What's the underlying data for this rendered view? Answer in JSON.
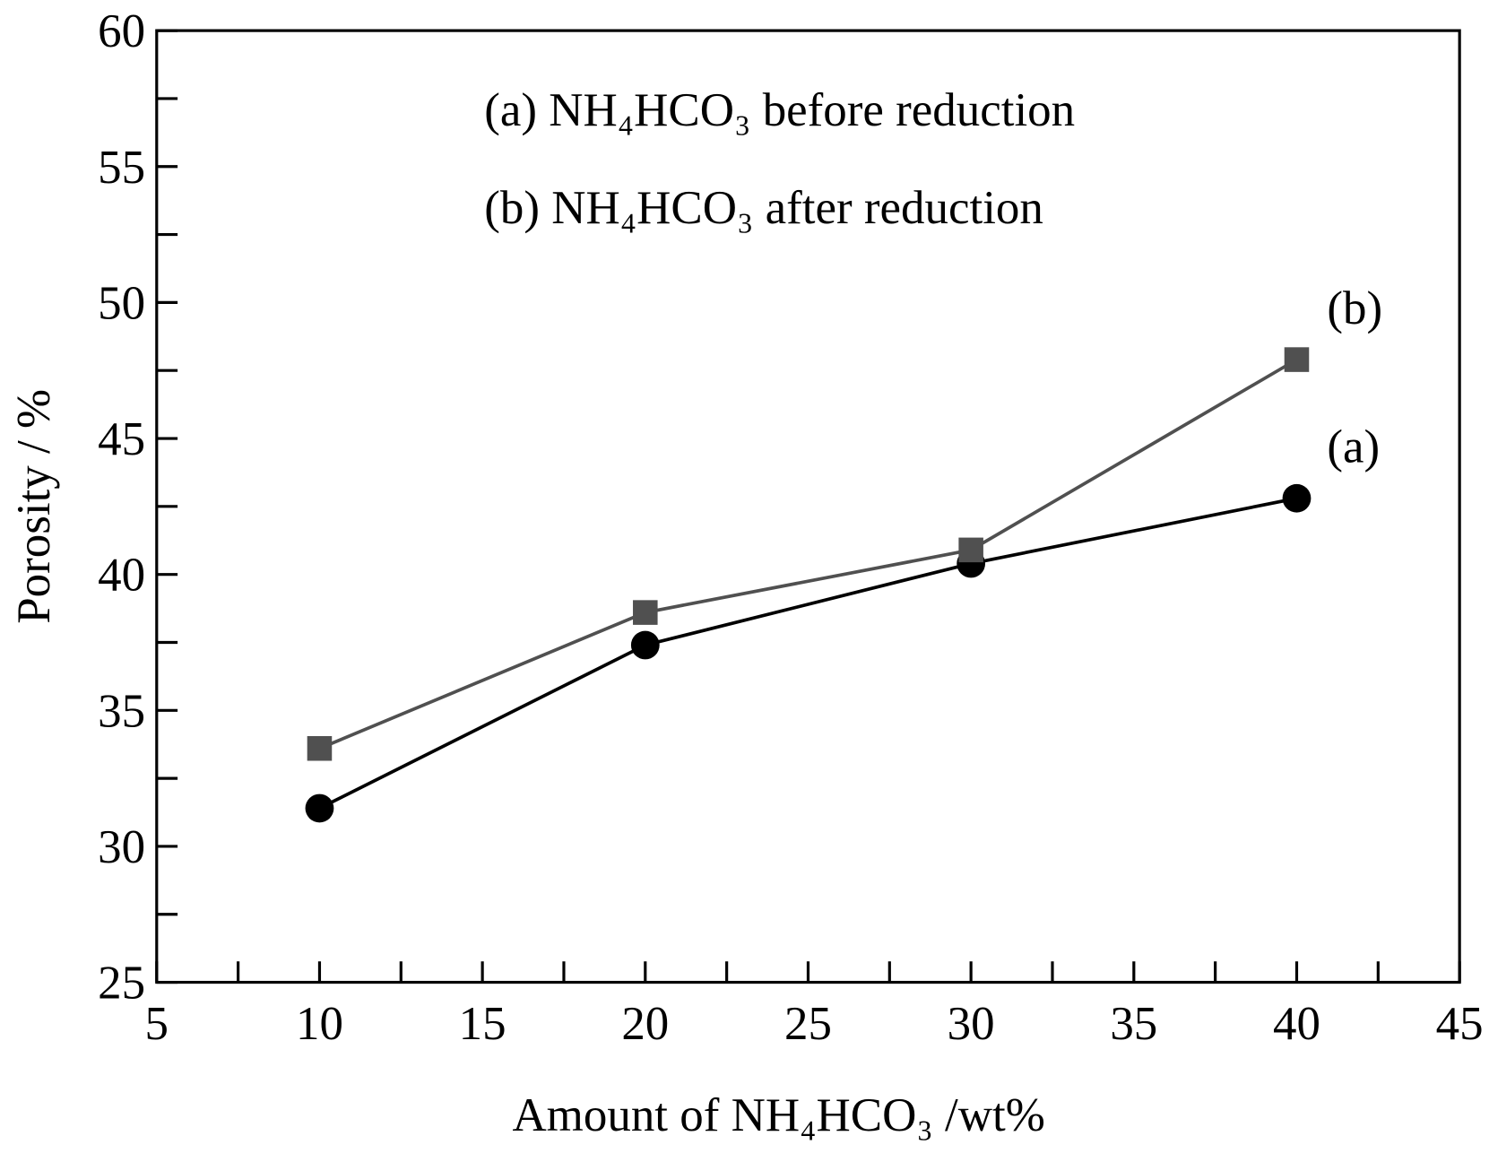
{
  "chart_data": {
    "type": "line",
    "x_label": "Amount of NH₄HCO₃ /wt%",
    "y_label": "Porosity / %",
    "x": [
      10,
      20,
      30,
      40
    ],
    "series": [
      {
        "name": "(a) NH₄HCO₃ before reduction",
        "color": "#000000",
        "marker": "circle",
        "label": "(a)",
        "values": [
          31.4,
          37.4,
          40.4,
          42.8
        ]
      },
      {
        "name": "(b) NH₄HCO₃ after reduction",
        "color": "#505050",
        "marker": "square",
        "label": "(b)",
        "values": [
          33.6,
          38.6,
          40.9,
          47.9
        ]
      }
    ],
    "xlim": [
      5,
      45
    ],
    "xticks": [
      5,
      10,
      15,
      20,
      25,
      30,
      35,
      40,
      45
    ],
    "x_minor_ticks": [
      7.5,
      12.5,
      17.5,
      22.5,
      27.5,
      32.5,
      37.5,
      42.5
    ],
    "ylim": [
      25,
      60
    ],
    "yticks": [
      25,
      30,
      35,
      40,
      45,
      50,
      55,
      60
    ],
    "y_minor_ticks": [
      27.5,
      32.5,
      37.5,
      42.5,
      47.5,
      52.5,
      57.5
    ],
    "grid": false
  }
}
